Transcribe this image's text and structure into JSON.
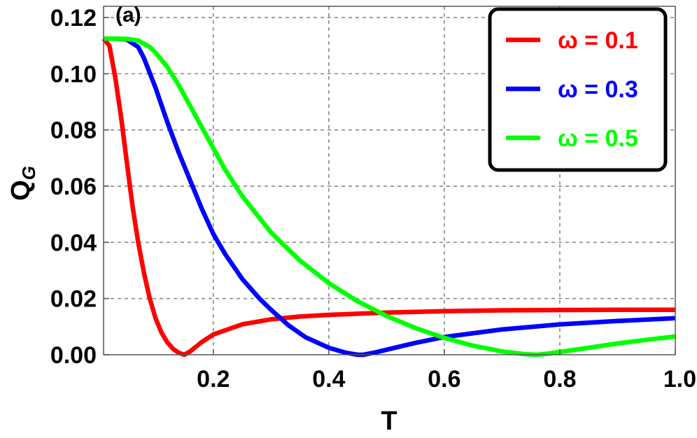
{
  "chart_data": {
    "type": "line",
    "panel_label": "(a)",
    "xlabel": "T",
    "ylabel": "Q",
    "ylabel_subscript": "G",
    "xlim": [
      0.01,
      1.0
    ],
    "ylim": [
      0.0,
      0.124
    ],
    "x_ticks": [
      0.2,
      0.4,
      0.6,
      0.8,
      1.0
    ],
    "x_tick_labels": [
      "0.2",
      "0.4",
      "0.6",
      "0.8",
      "1.0"
    ],
    "y_ticks": [
      0.0,
      0.02,
      0.04,
      0.06,
      0.08,
      0.1,
      0.12
    ],
    "y_tick_labels": [
      "0.00",
      "0.02",
      "0.04",
      "0.06",
      "0.08",
      "0.10",
      "0.12"
    ],
    "grid": true,
    "legend_position": "top-right",
    "series": [
      {
        "name": "ω = 0.1",
        "color": "#ff0000",
        "x": [
          0.01,
          0.02,
          0.03,
          0.04,
          0.05,
          0.06,
          0.07,
          0.08,
          0.09,
          0.1,
          0.11,
          0.12,
          0.13,
          0.14,
          0.15,
          0.16,
          0.18,
          0.2,
          0.25,
          0.3,
          0.35,
          0.4,
          0.5,
          0.6,
          0.7,
          0.8,
          0.9,
          1.0
        ],
        "y": [
          0.1125,
          0.11,
          0.099,
          0.085,
          0.069,
          0.053,
          0.04,
          0.029,
          0.02,
          0.013,
          0.008,
          0.0045,
          0.0022,
          0.0007,
          0.0,
          0.0012,
          0.0045,
          0.0072,
          0.0108,
          0.0126,
          0.0136,
          0.0142,
          0.015,
          0.0155,
          0.0158,
          0.0159,
          0.016,
          0.016
        ]
      },
      {
        "name": "ω = 0.3",
        "color": "#0000ff",
        "x": [
          0.01,
          0.03,
          0.05,
          0.07,
          0.08,
          0.1,
          0.12,
          0.14,
          0.16,
          0.18,
          0.2,
          0.22,
          0.25,
          0.28,
          0.3,
          0.33,
          0.36,
          0.4,
          0.43,
          0.45,
          0.46,
          0.48,
          0.5,
          0.55,
          0.6,
          0.7,
          0.8,
          0.9,
          1.0
        ],
        "y": [
          0.1125,
          0.1125,
          0.1122,
          0.1095,
          0.1055,
          0.095,
          0.083,
          0.072,
          0.062,
          0.052,
          0.043,
          0.036,
          0.027,
          0.02,
          0.016,
          0.0105,
          0.0062,
          0.0025,
          0.0007,
          0.0,
          0.0,
          0.0008,
          0.0018,
          0.0042,
          0.0063,
          0.009,
          0.0108,
          0.012,
          0.013
        ]
      },
      {
        "name": "ω = 0.5",
        "color": "#00ff00",
        "x": [
          0.01,
          0.03,
          0.05,
          0.07,
          0.09,
          0.1,
          0.12,
          0.14,
          0.16,
          0.18,
          0.2,
          0.22,
          0.25,
          0.3,
          0.35,
          0.4,
          0.45,
          0.5,
          0.55,
          0.6,
          0.65,
          0.7,
          0.74,
          0.76,
          0.78,
          0.8,
          0.85,
          0.9,
          0.95,
          1.0
        ],
        "y": [
          0.1125,
          0.1125,
          0.1124,
          0.1118,
          0.1095,
          0.1075,
          0.1025,
          0.096,
          0.0885,
          0.081,
          0.0735,
          0.066,
          0.0565,
          0.0435,
          0.0335,
          0.0255,
          0.019,
          0.0138,
          0.0095,
          0.006,
          0.0032,
          0.0012,
          0.0002,
          0.0,
          0.0004,
          0.001,
          0.0025,
          0.004,
          0.0053,
          0.0065
        ]
      }
    ]
  }
}
